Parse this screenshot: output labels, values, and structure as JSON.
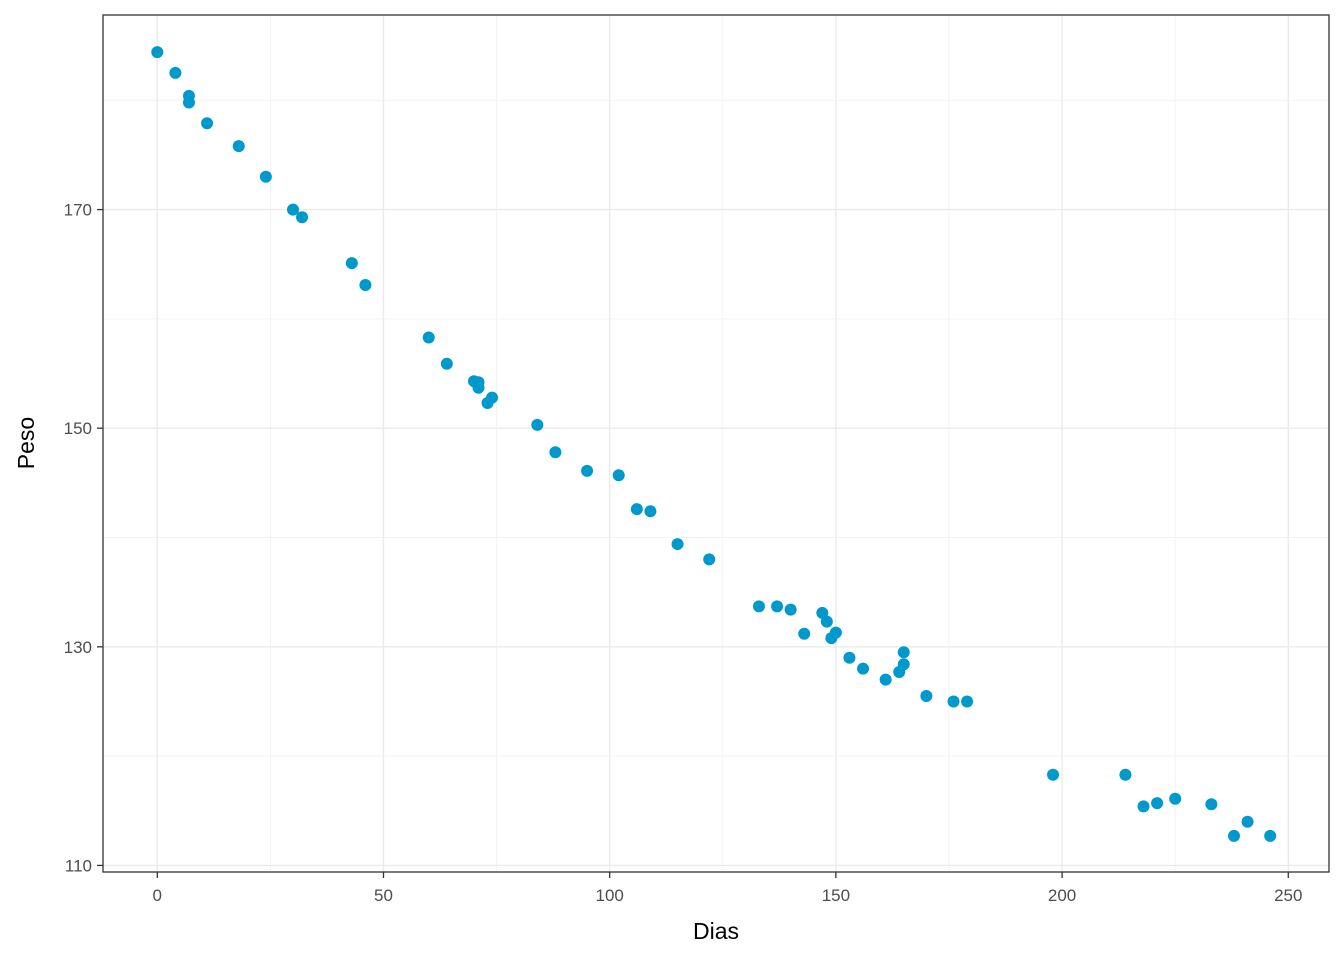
{
  "chart_data": {
    "type": "scatter",
    "xlabel": "Dias",
    "ylabel": "Peso",
    "xlim": [
      -12,
      259
    ],
    "ylim": [
      109.4,
      187.8
    ],
    "x_ticks": [
      0,
      50,
      100,
      150,
      200,
      250
    ],
    "y_ticks": [
      110,
      130,
      150,
      170
    ],
    "x_tick_labels": [
      "0",
      "50",
      "100",
      "150",
      "200",
      "250"
    ],
    "y_tick_labels": [
      "110",
      "130",
      "150",
      "170"
    ],
    "grid": true,
    "legend": "none",
    "point_color": "#0099CC",
    "points": [
      {
        "x": 0,
        "y": 184.4
      },
      {
        "x": 4,
        "y": 182.5
      },
      {
        "x": 7,
        "y": 180.4
      },
      {
        "x": 7,
        "y": 179.8
      },
      {
        "x": 11,
        "y": 177.9
      },
      {
        "x": 18,
        "y": 175.8
      },
      {
        "x": 24,
        "y": 173.0
      },
      {
        "x": 30,
        "y": 170.0
      },
      {
        "x": 32,
        "y": 169.3
      },
      {
        "x": 43,
        "y": 165.1
      },
      {
        "x": 46,
        "y": 163.1
      },
      {
        "x": 60,
        "y": 158.3
      },
      {
        "x": 64,
        "y": 155.9
      },
      {
        "x": 70,
        "y": 154.3
      },
      {
        "x": 71,
        "y": 153.7
      },
      {
        "x": 71,
        "y": 154.2
      },
      {
        "x": 73,
        "y": 152.3
      },
      {
        "x": 74,
        "y": 152.8
      },
      {
        "x": 84,
        "y": 150.3
      },
      {
        "x": 88,
        "y": 147.8
      },
      {
        "x": 95,
        "y": 146.1
      },
      {
        "x": 102,
        "y": 145.7
      },
      {
        "x": 106,
        "y": 142.6
      },
      {
        "x": 109,
        "y": 142.4
      },
      {
        "x": 115,
        "y": 139.4
      },
      {
        "x": 122,
        "y": 138.0
      },
      {
        "x": 133,
        "y": 133.7
      },
      {
        "x": 137,
        "y": 133.7
      },
      {
        "x": 140,
        "y": 133.4
      },
      {
        "x": 143,
        "y": 131.2
      },
      {
        "x": 147,
        "y": 133.1
      },
      {
        "x": 148,
        "y": 132.3
      },
      {
        "x": 149,
        "y": 130.8
      },
      {
        "x": 150,
        "y": 131.3
      },
      {
        "x": 153,
        "y": 129.0
      },
      {
        "x": 156,
        "y": 128.0
      },
      {
        "x": 161,
        "y": 127.0
      },
      {
        "x": 164,
        "y": 127.7
      },
      {
        "x": 165,
        "y": 128.4
      },
      {
        "x": 165,
        "y": 129.5
      },
      {
        "x": 170,
        "y": 125.5
      },
      {
        "x": 176,
        "y": 125.0
      },
      {
        "x": 179,
        "y": 125.0
      },
      {
        "x": 198,
        "y": 118.3
      },
      {
        "x": 214,
        "y": 118.3
      },
      {
        "x": 218,
        "y": 115.4
      },
      {
        "x": 221,
        "y": 115.7
      },
      {
        "x": 225,
        "y": 116.1
      },
      {
        "x": 233,
        "y": 115.6
      },
      {
        "x": 238,
        "y": 112.7
      },
      {
        "x": 241,
        "y": 114.0
      },
      {
        "x": 246,
        "y": 112.7
      }
    ]
  }
}
